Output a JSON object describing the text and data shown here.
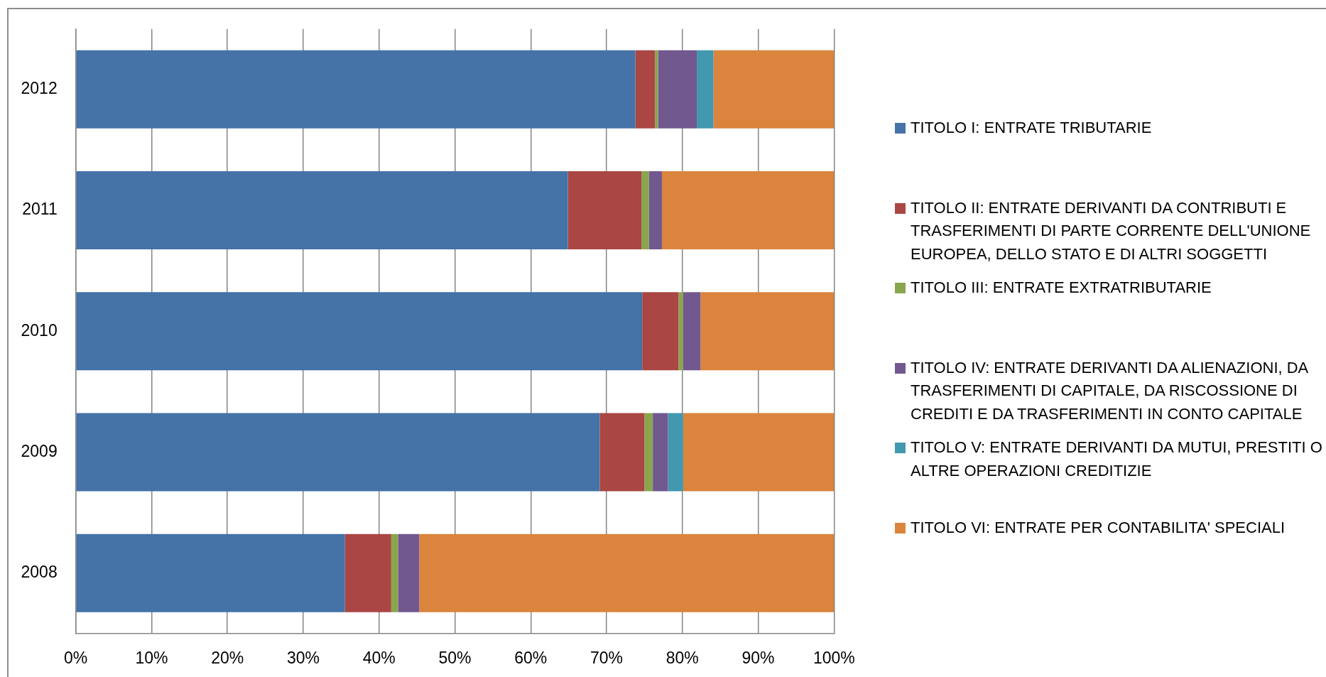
{
  "chart_data": {
    "type": "bar",
    "orientation": "horizontal",
    "stacked": true,
    "categories": [
      "2012",
      "2011",
      "2010",
      "2009",
      "2008"
    ],
    "series": [
      {
        "name": "TITOLO I: ENTRATE TRIBUTARIE",
        "color": "#4572a7",
        "values": [
          73.8,
          64.9,
          74.7,
          69.1,
          35.5
        ]
      },
      {
        "name": "TITOLO II: ENTRATE DERIVANTI DA CONTRIBUTI E TRASFERIMENTI DI PARTE CORRENTE DELL'UNIONE EUROPEA, DELLO STATO E DI ALTRI SOGGETTI",
        "color": "#aa4643",
        "values": [
          2.6,
          9.7,
          4.8,
          5.9,
          6.1
        ]
      },
      {
        "name": "TITOLO III: ENTRATE EXTRATRIBUTARIE",
        "color": "#89a54e",
        "values": [
          0.4,
          1.0,
          0.6,
          1.1,
          0.9
        ]
      },
      {
        "name": "TITOLO IV: ENTRATE DERIVANTI DA ALIENAZIONI, DA TRASFERIMENTI DI CAPITALE, DA RISCOSSIONE DI CREDITI E DA TRASFERIMENTI IN CONTO CAPITALE",
        "color": "#71588f",
        "values": [
          5.1,
          1.7,
          2.3,
          2.0,
          2.8
        ]
      },
      {
        "name": "TITOLO V: ENTRATE DERIVANTI DA MUTUI, PRESTITI O ALTRE OPERAZIONI CREDITIZIE",
        "color": "#4198af",
        "values": [
          2.2,
          0,
          0,
          2.0,
          0
        ]
      },
      {
        "name": "TITOLO VI: ENTRATE PER CONTABILITA' SPECIALI",
        "color": "#db843d",
        "values": [
          15.9,
          22.7,
          17.6,
          19.9,
          54.7
        ]
      }
    ],
    "xlim": [
      0,
      100
    ],
    "xticks": [
      {
        "value": 0,
        "label": "0%"
      },
      {
        "value": 10,
        "label": "10%"
      },
      {
        "value": 20,
        "label": "20%"
      },
      {
        "value": 30,
        "label": "30%"
      },
      {
        "value": 40,
        "label": "40%"
      },
      {
        "value": 50,
        "label": "50%"
      },
      {
        "value": 60,
        "label": "60%"
      },
      {
        "value": 70,
        "label": "70%"
      },
      {
        "value": 80,
        "label": "80%"
      },
      {
        "value": 90,
        "label": "90%"
      },
      {
        "value": 100,
        "label": "100%"
      }
    ],
    "grid": "x",
    "legend": "right"
  }
}
